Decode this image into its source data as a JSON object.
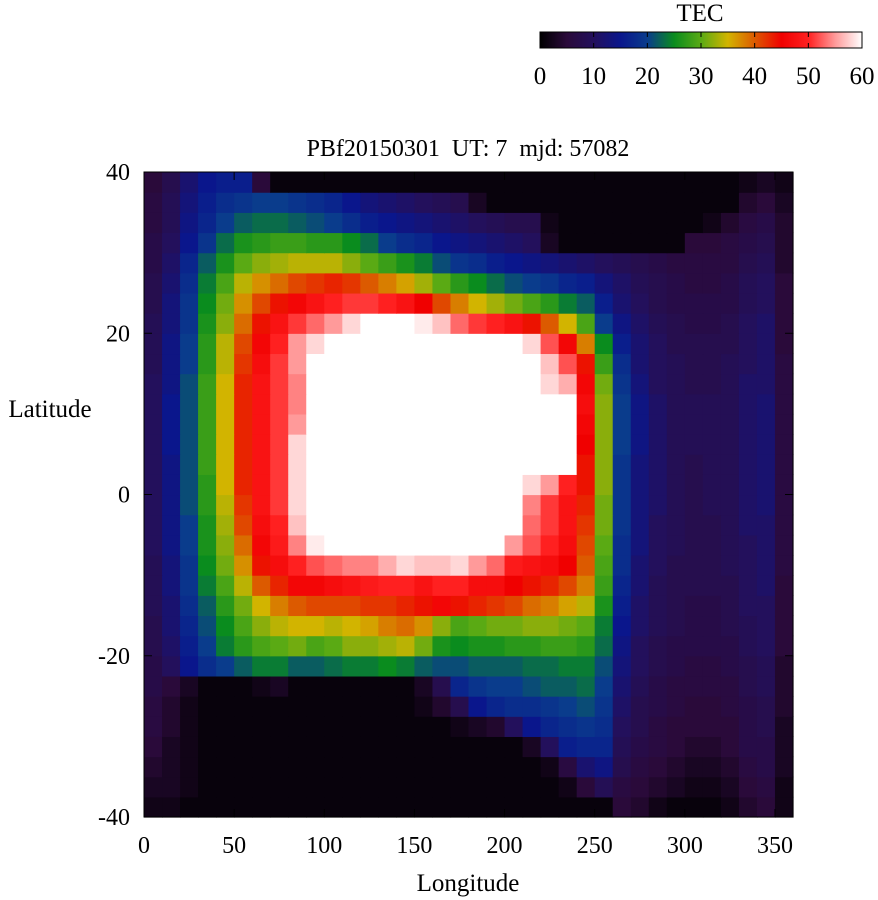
{
  "chart_data": {
    "type": "heatmap",
    "title": "PBf20150301  UT: 7  mjd: 57082",
    "xlabel": "Longitude",
    "ylabel": "Latitude",
    "xlim": [
      0,
      360
    ],
    "ylim": [
      -40,
      40
    ],
    "x_ticks": [
      0,
      50,
      100,
      150,
      200,
      250,
      300,
      350
    ],
    "y_ticks": [
      -40,
      -20,
      0,
      20,
      40
    ],
    "grid": false,
    "colorbar": {
      "label": "TEC",
      "range": [
        0,
        60
      ],
      "ticks": [
        0,
        10,
        20,
        30,
        40,
        50,
        60
      ],
      "placement": "top-right",
      "colormap": [
        {
          "value": 0,
          "color": "#000000"
        },
        {
          "value": 5,
          "color": "#2a0a3a"
        },
        {
          "value": 10,
          "color": "#23105c"
        },
        {
          "value": 15,
          "color": "#0a168c"
        },
        {
          "value": 20,
          "color": "#0a3c8c"
        },
        {
          "value": 25,
          "color": "#0a8c1e"
        },
        {
          "value": 30,
          "color": "#5aaa14"
        },
        {
          "value": 35,
          "color": "#d2b400"
        },
        {
          "value": 40,
          "color": "#dc5a00"
        },
        {
          "value": 45,
          "color": "#f00000"
        },
        {
          "value": 50,
          "color": "#ff2020"
        },
        {
          "value": 55,
          "color": "#ff9a9a"
        },
        {
          "value": 60,
          "color": "#ffffff"
        }
      ]
    },
    "grid_spec": {
      "lon_start": 0,
      "lon_step": 10,
      "lon_count": 36,
      "lat_start": -40,
      "lat_step": 2.5,
      "lat_count": 32
    },
    "values": [
      [
        2,
        2,
        1,
        1,
        1,
        1,
        1,
        1,
        1,
        1,
        1,
        1,
        1,
        1,
        1,
        1,
        1,
        1,
        1,
        1,
        1,
        1,
        1,
        1,
        1,
        1,
        5,
        4,
        2,
        1,
        1,
        1,
        2,
        4,
        5,
        2
      ],
      [
        3,
        3,
        2,
        1,
        1,
        1,
        1,
        1,
        1,
        1,
        1,
        1,
        1,
        1,
        1,
        1,
        1,
        1,
        1,
        1,
        1,
        1,
        1,
        2,
        5,
        9,
        6,
        5,
        4,
        3,
        2,
        2,
        3,
        5,
        6,
        2
      ],
      [
        4,
        3,
        2,
        1,
        1,
        1,
        1,
        1,
        1,
        1,
        1,
        1,
        1,
        1,
        1,
        1,
        1,
        1,
        1,
        1,
        1,
        1,
        2,
        6,
        12,
        14,
        8,
        6,
        5,
        4,
        3,
        3,
        4,
        6,
        7,
        3
      ],
      [
        5,
        3,
        2,
        1,
        1,
        1,
        1,
        1,
        1,
        1,
        1,
        1,
        1,
        1,
        1,
        1,
        1,
        1,
        1,
        1,
        1,
        3,
        10,
        16,
        17,
        17,
        9,
        7,
        6,
        5,
        4,
        4,
        5,
        7,
        7,
        3
      ],
      [
        6,
        4,
        2,
        1,
        1,
        1,
        1,
        1,
        1,
        1,
        1,
        1,
        1,
        1,
        1,
        1,
        1,
        2,
        3,
        4,
        10,
        15,
        17,
        18,
        19,
        18,
        10,
        8,
        6,
        5,
        5,
        5,
        5,
        7,
        8,
        3
      ],
      [
        6,
        4,
        2,
        1,
        1,
        1,
        1,
        1,
        1,
        1,
        1,
        1,
        1,
        1,
        1,
        2,
        4,
        8,
        15,
        17,
        18,
        18,
        19,
        20,
        21,
        19,
        11,
        8,
        7,
        6,
        5,
        5,
        6,
        7,
        8,
        4
      ],
      [
        7,
        5,
        3,
        1,
        1,
        1,
        2,
        3,
        1,
        1,
        1,
        1,
        1,
        1,
        1,
        3,
        8,
        17,
        19,
        20,
        20,
        21,
        22,
        22,
        23,
        20,
        12,
        9,
        7,
        6,
        6,
        6,
        6,
        8,
        9,
        4
      ],
      [
        7,
        10,
        15,
        18,
        20,
        22,
        24,
        24,
        22,
        22,
        23,
        24,
        24,
        25,
        24,
        22,
        21,
        21,
        22,
        22,
        22,
        23,
        23,
        24,
        24,
        21,
        13,
        10,
        8,
        7,
        6,
        6,
        7,
        8,
        9,
        4
      ],
      [
        8,
        11,
        16,
        20,
        24,
        27,
        29,
        30,
        31,
        29,
        30,
        32,
        32,
        33,
        34,
        31,
        26,
        25,
        26,
        26,
        27,
        27,
        28,
        28,
        27,
        23,
        14,
        10,
        8,
        7,
        7,
        7,
        7,
        9,
        10,
        5
      ],
      [
        8,
        12,
        17,
        21,
        25,
        29,
        32,
        34,
        35,
        35,
        34,
        35,
        36,
        38,
        39,
        37,
        32,
        29,
        30,
        31,
        31,
        32,
        32,
        31,
        30,
        24,
        15,
        11,
        9,
        8,
        7,
        7,
        8,
        9,
        10,
        5
      ],
      [
        9,
        12,
        18,
        22,
        27,
        31,
        35,
        38,
        40,
        41,
        41,
        41,
        42,
        42,
        43,
        44,
        46,
        44,
        43,
        42,
        41,
        39,
        38,
        36,
        34,
        26,
        16,
        11,
        9,
        8,
        7,
        7,
        8,
        10,
        10,
        5
      ],
      [
        9,
        13,
        19,
        24,
        29,
        34,
        40,
        43,
        46,
        46,
        47,
        48,
        49,
        50,
        50,
        48,
        50,
        50,
        47,
        47,
        45,
        44,
        43,
        41,
        38,
        28,
        17,
        12,
        9,
        8,
        8,
        8,
        8,
        10,
        11,
        5
      ],
      [
        9,
        13,
        19,
        25,
        31,
        37,
        44,
        47,
        50,
        52,
        53,
        54,
        54,
        56,
        58,
        57,
        57,
        58,
        55,
        53,
        49,
        48,
        47,
        45,
        40,
        29,
        18,
        12,
        10,
        8,
        8,
        8,
        9,
        10,
        11,
        6
      ],
      [
        10,
        14,
        20,
        26,
        32,
        39,
        46,
        49,
        54,
        59,
        60,
        60,
        60,
        60,
        60,
        60,
        60,
        60,
        60,
        60,
        55,
        52,
        50,
        47,
        41,
        30,
        18,
        13,
        10,
        9,
        8,
        8,
        9,
        10,
        11,
        6
      ],
      [
        10,
        14,
        20,
        26,
        33,
        41,
        47,
        50,
        57,
        60,
        60,
        60,
        60,
        60,
        60,
        60,
        60,
        60,
        60,
        60,
        60,
        53,
        51,
        48,
        42,
        31,
        19,
        13,
        10,
        9,
        8,
        8,
        9,
        11,
        11,
        6
      ],
      [
        10,
        14,
        21,
        27,
        34,
        42,
        48,
        51,
        58,
        60,
        60,
        60,
        60,
        60,
        60,
        60,
        60,
        60,
        60,
        60,
        60,
        54,
        51,
        48,
        43,
        31,
        19,
        13,
        11,
        9,
        8,
        9,
        9,
        11,
        12,
        6
      ],
      [
        10,
        14,
        21,
        27,
        35,
        43,
        48,
        51,
        58,
        60,
        60,
        60,
        60,
        60,
        60,
        60,
        60,
        60,
        60,
        60,
        60,
        58,
        55,
        50,
        44,
        32,
        19,
        13,
        11,
        9,
        8,
        9,
        9,
        11,
        12,
        6
      ],
      [
        10,
        14,
        21,
        28,
        35,
        43,
        48,
        51,
        58,
        60,
        60,
        60,
        60,
        60,
        60,
        60,
        60,
        60,
        60,
        60,
        60,
        60,
        60,
        60,
        44,
        32,
        19,
        13,
        11,
        9,
        8,
        9,
        9,
        11,
        12,
        6
      ],
      [
        10,
        15,
        21,
        28,
        35,
        43,
        48,
        51,
        58,
        60,
        60,
        60,
        60,
        60,
        60,
        60,
        60,
        60,
        60,
        60,
        60,
        60,
        60,
        60,
        45,
        32,
        20,
        14,
        11,
        9,
        9,
        9,
        9,
        11,
        12,
        6
      ],
      [
        10,
        15,
        21,
        28,
        35,
        43,
        48,
        51,
        55,
        60,
        60,
        60,
        60,
        60,
        60,
        60,
        60,
        60,
        60,
        60,
        60,
        60,
        60,
        60,
        46,
        32,
        20,
        14,
        11,
        9,
        9,
        9,
        9,
        11,
        12,
        6
      ],
      [
        10,
        15,
        21,
        28,
        35,
        43,
        48,
        51,
        54,
        60,
        60,
        60,
        60,
        60,
        60,
        60,
        60,
        60,
        60,
        60,
        60,
        60,
        60,
        60,
        47,
        32,
        20,
        14,
        11,
        9,
        9,
        9,
        9,
        11,
        12,
        6
      ],
      [
        10,
        14,
        21,
        28,
        35,
        43,
        48,
        51,
        54,
        60,
        60,
        60,
        60,
        60,
        60,
        60,
        60,
        60,
        60,
        60,
        60,
        60,
        58,
        56,
        46,
        31,
        19,
        13,
        10,
        9,
        8,
        8,
        9,
        11,
        11,
        6
      ],
      [
        9,
        14,
        20,
        27,
        34,
        42,
        47,
        51,
        55,
        60,
        60,
        60,
        60,
        60,
        60,
        60,
        60,
        60,
        60,
        60,
        60,
        60,
        57,
        52,
        44,
        28,
        18,
        12,
        10,
        9,
        8,
        8,
        9,
        10,
        11,
        6
      ],
      [
        9,
        14,
        20,
        27,
        34,
        41,
        46,
        50,
        55,
        58,
        60,
        60,
        60,
        60,
        60,
        60,
        60,
        60,
        60,
        60,
        60,
        58,
        52,
        46,
        38,
        25,
        16,
        12,
        10,
        8,
        8,
        8,
        8,
        10,
        11,
        5
      ],
      [
        9,
        13,
        19,
        26,
        32,
        39,
        44,
        48,
        51,
        53,
        55,
        58,
        60,
        60,
        60,
        59,
        57,
        53,
        51,
        50,
        48,
        44,
        40,
        35,
        29,
        20,
        14,
        11,
        9,
        8,
        7,
        7,
        8,
        10,
        11,
        5
      ],
      [
        8,
        13,
        19,
        25,
        31,
        37,
        41,
        44,
        46,
        48,
        50,
        51,
        51,
        50,
        48,
        45,
        41,
        38,
        35,
        33,
        31,
        29,
        27,
        24,
        22,
        16,
        12,
        10,
        8,
        7,
        7,
        7,
        7,
        9,
        10,
        5
      ],
      [
        8,
        12,
        18,
        24,
        29,
        34,
        37,
        39,
        41,
        42,
        43,
        42,
        40,
        38,
        36,
        33,
        30,
        27,
        25,
        23,
        21,
        20,
        19,
        17,
        16,
        13,
        11,
        9,
        8,
        7,
        6,
        6,
        7,
        9,
        10,
        5
      ],
      [
        7,
        11,
        17,
        22,
        26,
        30,
        32,
        33,
        34,
        34,
        34,
        32,
        30,
        28,
        26,
        24,
        21,
        19,
        18,
        16,
        15,
        14,
        13,
        12,
        11,
        10,
        9,
        8,
        7,
        6,
        6,
        6,
        6,
        8,
        9,
        4
      ],
      [
        7,
        10,
        15,
        19,
        23,
        26,
        27,
        28,
        28,
        27,
        27,
        25,
        23,
        20,
        18,
        17,
        15,
        14,
        13,
        12,
        11,
        10,
        3,
        1,
        1,
        1,
        1,
        1,
        1,
        1,
        5,
        5,
        6,
        7,
        8,
        4
      ],
      [
        6,
        9,
        14,
        17,
        20,
        22,
        23,
        23,
        22,
        21,
        20,
        18,
        16,
        15,
        14,
        13,
        12,
        11,
        10,
        9,
        8,
        8,
        2,
        1,
        1,
        1,
        1,
        1,
        1,
        1,
        1,
        2,
        4,
        6,
        7,
        4
      ],
      [
        6,
        9,
        13,
        16,
        18,
        19,
        20,
        20,
        19,
        18,
        17,
        15,
        13,
        12,
        11,
        10,
        9,
        8,
        3,
        1,
        1,
        1,
        1,
        1,
        1,
        1,
        1,
        1,
        1,
        1,
        1,
        1,
        1,
        4,
        5,
        3
      ],
      [
        5,
        8,
        12,
        15,
        16,
        16,
        5,
        1,
        1,
        1,
        1,
        1,
        1,
        1,
        1,
        1,
        1,
        1,
        1,
        1,
        1,
        1,
        1,
        1,
        1,
        1,
        1,
        1,
        1,
        1,
        1,
        1,
        1,
        2,
        3,
        2
      ]
    ]
  }
}
